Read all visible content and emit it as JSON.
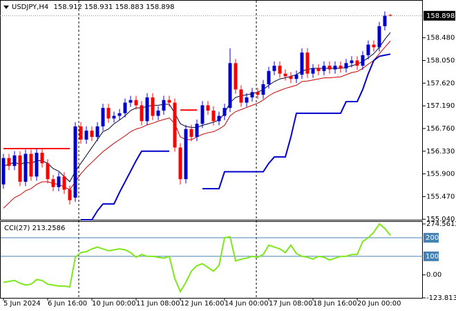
{
  "chart_data": {
    "type": "candlestick",
    "symbol": "USDJPY,H4",
    "categories": [
      "5 Jun 2024",
      null,
      null,
      null,
      null,
      null,
      null,
      null,
      "6 Jun 16:00",
      null,
      null,
      null,
      null,
      null,
      null,
      null,
      "10 Jun 00:00",
      null,
      null,
      null,
      null,
      null,
      null,
      null,
      "11 Jun 08:00",
      null,
      null,
      null,
      null,
      null,
      null,
      null,
      "12 Jun 16:00",
      null,
      null,
      null,
      null,
      null,
      null,
      null,
      "14 Jun 00:00",
      null,
      null,
      null,
      null,
      null,
      null,
      null,
      "17 Jun 08:00",
      null,
      null,
      null,
      null,
      null,
      null,
      null,
      "18 Jun 16:00",
      null,
      null,
      null,
      null,
      null,
      null,
      null,
      "20 Jun 00:00",
      null,
      null,
      null,
      null,
      null,
      null
    ],
    "open": [
      155.7,
      156.2,
      156.05,
      156.25,
      155.75,
      156.28,
      155.85,
      156.3,
      156.1,
      155.8,
      155.65,
      155.85,
      155.6,
      155.45,
      156.8,
      156.55,
      156.72,
      156.6,
      156.8,
      157.15,
      156.95,
      157.0,
      157.05,
      157.25,
      157.3,
      157.2,
      156.9,
      157.35,
      157.0,
      157.1,
      157.3,
      157.25,
      156.4,
      155.8,
      156.75,
      156.6,
      156.85,
      157.2,
      157.1,
      156.9,
      157.0,
      157.15,
      158.0,
      157.5,
      157.25,
      157.35,
      157.45,
      157.4,
      157.6,
      157.85,
      157.95,
      157.8,
      157.75,
      157.7,
      157.78,
      158.2,
      157.8,
      157.9,
      157.85,
      157.95,
      157.88,
      157.95,
      157.9,
      158.0,
      158.05,
      157.95,
      158.15,
      158.35,
      158.3,
      158.7,
      158.912
    ],
    "high": [
      156.28,
      156.28,
      156.33,
      156.33,
      156.36,
      156.36,
      156.38,
      156.38,
      156.18,
      155.88,
      155.93,
      155.93,
      155.68,
      156.88,
      156.88,
      156.8,
      156.8,
      156.88,
      157.23,
      157.23,
      157.08,
      157.13,
      157.33,
      157.38,
      157.38,
      157.28,
      157.43,
      157.43,
      157.18,
      157.38,
      157.38,
      157.33,
      156.48,
      156.83,
      156.83,
      156.93,
      157.28,
      157.28,
      157.18,
      157.08,
      157.23,
      158.28,
      158.08,
      157.58,
      157.43,
      157.53,
      157.53,
      157.68,
      157.93,
      158.03,
      158.03,
      157.88,
      157.83,
      157.86,
      158.28,
      158.28,
      157.98,
      157.98,
      158.03,
      158.03,
      158.03,
      158.03,
      158.08,
      158.13,
      158.13,
      158.23,
      158.43,
      158.43,
      158.78,
      158.98,
      158.931
    ],
    "low": [
      155.62,
      155.97,
      155.97,
      155.67,
      155.67,
      155.77,
      155.77,
      156.02,
      155.72,
      155.57,
      155.57,
      155.52,
      155.32,
      155.37,
      156.47,
      156.47,
      156.52,
      156.52,
      156.72,
      156.87,
      156.87,
      156.92,
      156.97,
      157.17,
      157.12,
      156.82,
      156.82,
      156.92,
      156.92,
      157.02,
      157.17,
      156.32,
      155.7,
      155.72,
      156.52,
      156.52,
      156.77,
      157.02,
      156.82,
      156.82,
      156.92,
      157.07,
      157.42,
      157.17,
      157.17,
      157.27,
      157.32,
      157.32,
      157.52,
      157.77,
      157.72,
      157.67,
      157.62,
      157.62,
      157.7,
      157.72,
      157.72,
      157.77,
      157.77,
      157.8,
      157.8,
      157.82,
      157.82,
      157.92,
      157.87,
      157.87,
      158.07,
      158.22,
      158.22,
      158.62,
      158.883
    ],
    "close": [
      156.2,
      156.05,
      156.25,
      155.75,
      156.28,
      155.85,
      156.3,
      156.1,
      155.8,
      155.65,
      155.85,
      155.6,
      155.4,
      156.8,
      156.55,
      156.72,
      156.6,
      156.8,
      157.15,
      156.95,
      157.0,
      157.05,
      157.25,
      157.3,
      157.2,
      156.9,
      157.35,
      157.0,
      157.1,
      157.3,
      157.25,
      156.4,
      155.8,
      156.75,
      156.6,
      156.85,
      157.2,
      157.1,
      156.9,
      157.0,
      157.15,
      158.0,
      157.5,
      157.25,
      157.35,
      157.45,
      157.4,
      157.6,
      157.85,
      157.95,
      157.8,
      157.75,
      157.7,
      157.78,
      158.2,
      157.8,
      157.9,
      157.85,
      157.95,
      157.88,
      157.95,
      157.9,
      158.0,
      158.05,
      157.95,
      158.15,
      158.35,
      158.3,
      158.7,
      158.9,
      158.898
    ],
    "bull_color": "#0000cd",
    "bear_color": "#ff0000",
    "ylim": [
      155.03,
      159.17
    ],
    "yticks": [
      {
        "value": 158.48,
        "label": "158.480"
      },
      {
        "value": 158.05,
        "label": "158.050"
      },
      {
        "value": 157.62,
        "label": "157.620"
      },
      {
        "value": 157.19,
        "label": "157.190"
      },
      {
        "value": 156.76,
        "label": "156.760"
      },
      {
        "value": 156.33,
        "label": "156.330"
      },
      {
        "value": 155.9,
        "label": "155.900"
      },
      {
        "value": 155.47,
        "label": "155.470"
      },
      {
        "value": 155.04,
        "label": "155.040"
      }
    ],
    "grid": false,
    "series": [
      {
        "color": "#cc0000",
        "values": [
          155.25,
          155.35,
          155.45,
          155.5,
          155.58,
          155.62,
          155.7,
          155.75,
          155.75,
          155.72,
          155.7,
          155.65,
          155.6,
          155.75,
          155.9,
          156.02,
          156.12,
          156.22,
          156.32,
          156.4,
          156.48,
          156.55,
          156.62,
          156.7,
          156.75,
          156.78,
          156.83,
          156.86,
          156.9,
          156.93,
          156.96,
          156.85,
          156.6,
          156.55,
          156.55,
          156.6,
          156.65,
          156.68,
          156.7,
          156.75,
          156.82,
          157.0,
          157.08,
          157.12,
          157.16,
          157.2,
          157.24,
          157.3,
          157.38,
          157.44,
          157.48,
          157.52,
          157.55,
          157.58,
          157.65,
          157.66,
          157.68,
          157.7,
          157.72,
          157.72,
          157.73,
          157.74,
          157.78,
          157.82,
          157.84,
          157.9,
          157.98,
          158.05,
          158.18,
          158.3,
          158.42
        ]
      },
      {
        "color": "#000033",
        "values": [
          156.05,
          156.08,
          156.12,
          156.08,
          156.12,
          156.1,
          156.15,
          156.15,
          156.1,
          156.0,
          155.95,
          155.85,
          155.75,
          155.95,
          156.1,
          156.25,
          156.4,
          156.55,
          156.7,
          156.75,
          156.85,
          156.92,
          157.0,
          157.1,
          157.15,
          157.15,
          157.18,
          157.2,
          157.2,
          157.22,
          157.22,
          157.05,
          156.85,
          156.8,
          156.78,
          156.78,
          156.82,
          156.85,
          156.88,
          156.92,
          157.05,
          157.25,
          157.35,
          157.38,
          157.4,
          157.42,
          157.45,
          157.5,
          157.58,
          157.65,
          157.7,
          157.72,
          157.75,
          157.78,
          157.85,
          157.88,
          157.9,
          157.9,
          157.9,
          157.9,
          157.9,
          157.9,
          157.92,
          157.95,
          157.98,
          158.03,
          158.1,
          158.18,
          158.3,
          158.45,
          158.58
        ]
      },
      {
        "color": "#0000cd",
        "values": [
          null,
          null,
          null,
          null,
          null,
          null,
          null,
          null,
          null,
          null,
          null,
          null,
          null,
          null,
          155.03,
          155.03,
          155.03,
          155.2,
          155.33,
          155.33,
          155.33,
          155.55,
          155.75,
          155.95,
          156.15,
          156.33,
          156.33,
          156.33,
          156.33,
          156.33,
          156.33,
          null,
          null,
          null,
          null,
          null,
          155.62,
          155.62,
          155.62,
          155.62,
          155.94,
          155.94,
          155.94,
          155.94,
          155.94,
          155.94,
          155.94,
          155.94,
          156.1,
          156.22,
          156.22,
          156.22,
          156.6,
          157.05,
          157.05,
          157.05,
          157.05,
          157.05,
          157.05,
          157.05,
          157.05,
          157.05,
          157.27,
          157.27,
          157.27,
          157.5,
          157.8,
          158.05,
          158.13,
          158.15,
          158.17
        ]
      },
      {
        "color": "#ff0000",
        "values": [
          156.38,
          156.38,
          156.38,
          156.38,
          156.38,
          156.38,
          156.38,
          156.38,
          156.38,
          156.38,
          156.38,
          156.38,
          156.38,
          null,
          null,
          null,
          null,
          null,
          null,
          null,
          null,
          null,
          null,
          null,
          null,
          null,
          null,
          null,
          null,
          null,
          null,
          null,
          157.11,
          157.11,
          157.11,
          157.11,
          null,
          null,
          null,
          null,
          null,
          null,
          null,
          null,
          null,
          null,
          null,
          null,
          null,
          null,
          null,
          null,
          null,
          null,
          null,
          null,
          null,
          null,
          null,
          null,
          null,
          null,
          null,
          null,
          null,
          null,
          null,
          null,
          null,
          null,
          null
        ]
      }
    ],
    "indicator": {
      "name": "CCI(27)",
      "color": "#7ee81a",
      "level_color": "#4682b4",
      "ylim": [
        -123.8133,
        274.5612
      ],
      "yticks": [
        274.5612,
        {
          "value": 0,
          "label": "0.00"
        },
        -123.8133
      ],
      "levels": [
        200,
        100
      ],
      "values": [
        -40,
        -35,
        -30,
        -45,
        -55,
        -50,
        -25,
        -30,
        -50,
        -55,
        -60,
        -60,
        -65,
        95,
        120,
        125,
        140,
        150,
        140,
        130,
        135,
        140,
        135,
        120,
        95,
        110,
        100,
        100,
        95,
        90,
        100,
        -20,
        -90,
        -40,
        20,
        50,
        60,
        40,
        20,
        50,
        200,
        205,
        75,
        85,
        90,
        100,
        95,
        110,
        160,
        150,
        140,
        120,
        160,
        115,
        100,
        95,
        85,
        100,
        95,
        80,
        90,
        100,
        100,
        110,
        110,
        180,
        200,
        230,
        274.5612,
        250,
        213.2586
      ]
    }
  }
}
